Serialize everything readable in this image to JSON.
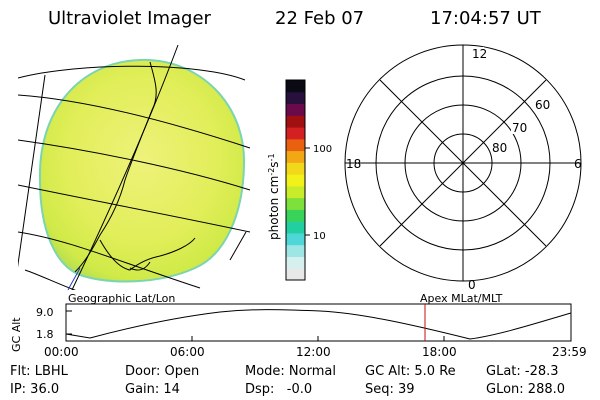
{
  "header": {
    "title": "Ultraviolet Imager",
    "date": "22 Feb 07",
    "time": "17:04:57 UT"
  },
  "colorbar": {
    "label": "photon cm",
    "label_sup1": "-2",
    "label_s": "s",
    "label_sup2": "-1",
    "tick_100": "100",
    "tick_10": "10",
    "colors": [
      "#e8e8e8",
      "#d6f0f0",
      "#9ee6e6",
      "#4fd6d6",
      "#22cfa0",
      "#39d35a",
      "#7ee03a",
      "#c8ec2a",
      "#f2f21a",
      "#f2d81a",
      "#f2a814",
      "#e86010",
      "#d42020",
      "#a01010",
      "#6a0a4a",
      "#28103c",
      "#0a0a14"
    ]
  },
  "polar": {
    "lat_labels": [
      "60",
      "70",
      "80"
    ],
    "mlt_labels": {
      "top": "12",
      "left": "18",
      "right": "6",
      "bottom": "0"
    }
  },
  "timeline": {
    "left_title": "Geographic Lat/Lon",
    "right_title": "Apex  MLat/MLT",
    "axis_label": "GC Alt",
    "y_ticks": [
      "9.0",
      "1.8"
    ],
    "x_ticks": [
      "00:00",
      "06:00",
      "12:00",
      "18:00",
      "23:59"
    ]
  },
  "status": {
    "row1": [
      {
        "name": "flt",
        "text": "Flt: LBHL"
      },
      {
        "name": "door",
        "text": "Door: Open"
      },
      {
        "name": "mode",
        "text": "Mode: Normal"
      },
      {
        "name": "gc-alt",
        "text": "GC Alt: 5.0 Re"
      },
      {
        "name": "glat",
        "text": "GLat: -28.3"
      }
    ],
    "row2": [
      {
        "name": "ip",
        "text": "IP: 36.0"
      },
      {
        "name": "gain",
        "text": "Gain: 14"
      },
      {
        "name": "dsp",
        "text": "Dsp:   -0.0"
      },
      {
        "name": "seq",
        "text": "Seq: 39"
      },
      {
        "name": "glon",
        "text": "GLon: 288.0"
      }
    ]
  }
}
